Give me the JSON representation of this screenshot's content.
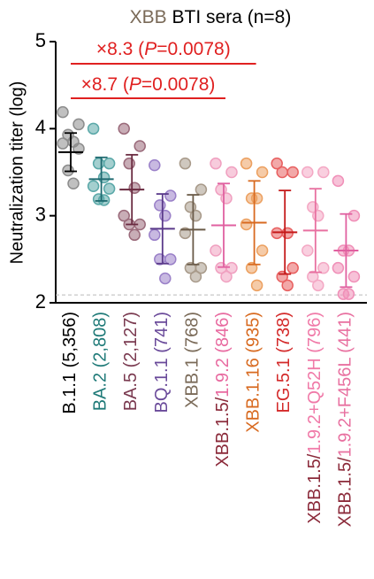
{
  "chart_data": {
    "type": "dot",
    "title": [
      {
        "text": "XBB",
        "color": "#7a6a58"
      },
      {
        "text": " BTI sera (n=8)",
        "color": "#000000"
      }
    ],
    "y_label": "Neutralization titer (log)",
    "ylim": [
      2,
      5
    ],
    "yticks": [
      2,
      3,
      4,
      5
    ],
    "reference_line": 2.09,
    "series": [
      {
        "label": [
          {
            "text": "B.1.1 (5,356)",
            "color": "#000000"
          }
        ],
        "color": "#8c8c8c",
        "bar_color": "#000000",
        "values": [
          4.19,
          4.05,
          3.93,
          3.85,
          3.83,
          3.77,
          3.52,
          3.37
        ],
        "mean": 3.73,
        "sd": 0.22
      },
      {
        "label": [
          {
            "text": "BA.2 (2,808)",
            "color": "#1f7a78"
          }
        ],
        "color": "#5aa8a8",
        "bar_color": "#1f6a70",
        "values": [
          4.0,
          3.6,
          3.6,
          3.44,
          3.34,
          3.31,
          3.19,
          3.18
        ],
        "mean": 3.42,
        "sd": 0.25
      },
      {
        "label": [
          {
            "text": "BA.5 (2,127)",
            "color": "#7a3a50"
          }
        ],
        "color": "#9a6a7a",
        "bar_color": "#6a2a40",
        "values": [
          4.0,
          3.8,
          3.6,
          3.32,
          3.0,
          2.9,
          2.9,
          2.78
        ],
        "mean": 3.3,
        "sd": 0.4
      },
      {
        "label": [
          {
            "text": "BQ.1.1 (741)",
            "color": "#6a4a9a"
          }
        ],
        "color": "#9a80c8",
        "bar_color": "#5a3a8a",
        "values": [
          3.58,
          3.23,
          3.12,
          3.0,
          2.78,
          2.5,
          2.5,
          2.28
        ],
        "mean": 2.85,
        "sd": 0.4
      },
      {
        "label": [
          {
            "text": "XBB.1 (768)",
            "color": "#7a6a58"
          }
        ],
        "color": "#a89a8a",
        "bar_color": "#6a5a48",
        "values": [
          3.6,
          3.3,
          3.1,
          3.0,
          2.8,
          2.4,
          2.4,
          2.3
        ],
        "mean": 2.84,
        "sd": 0.4
      },
      {
        "label": [
          {
            "text": "XBB.1.5/",
            "color": "#8b2a3a"
          },
          {
            "text": "1.9.2 (846)",
            "color": "#e86aa0"
          }
        ],
        "color": "#f0a0c0",
        "bar_color": "#e060a0",
        "values": [
          3.6,
          3.5,
          3.3,
          3.2,
          2.6,
          2.4,
          2.4,
          2.3
        ],
        "mean": 2.89,
        "sd": 0.48
      },
      {
        "label": [
          {
            "text": "XBB.1.16 (935)",
            "color": "#d86a20"
          }
        ],
        "color": "#eca060",
        "bar_color": "#d86a20",
        "values": [
          3.6,
          3.5,
          3.2,
          3.2,
          2.9,
          2.6,
          2.4,
          2.2
        ],
        "mean": 2.92,
        "sd": 0.48
      },
      {
        "label": [
          {
            "text": "EG.5.1 (738)",
            "color": "#d42a2a"
          }
        ],
        "color": "#e86060",
        "bar_color": "#c41a1a",
        "values": [
          3.6,
          3.5,
          3.5,
          2.8,
          2.8,
          2.4,
          2.3,
          2.2
        ],
        "mean": 2.81,
        "sd": 0.48
      },
      {
        "label": [
          {
            "text": "XBB.1.5/",
            "color": "#8b2a3a"
          },
          {
            "text": "1.9.2+Q52H (796)",
            "color": "#f07aa8"
          }
        ],
        "color": "#f4a8c4",
        "bar_color": "#e870a0",
        "values": [
          3.5,
          3.5,
          3.1,
          3.0,
          2.6,
          2.4,
          2.3,
          2.2
        ],
        "mean": 2.83,
        "sd": 0.48
      },
      {
        "label": [
          {
            "text": "XBB.1.5/",
            "color": "#8b2a3a"
          },
          {
            "text": "1.9.2+F456L (441)",
            "color": "#e870a0"
          }
        ],
        "color": "#f090b8",
        "bar_color": "#e060a0",
        "values": [
          3.4,
          3.0,
          2.6,
          2.6,
          2.4,
          2.3,
          2.1,
          2.1
        ],
        "mean": 2.6,
        "sd": 0.42
      }
    ],
    "annotations": [
      {
        "parts": [
          {
            "text": "×8.3 (",
            "italic": false
          },
          {
            "text": "P",
            "italic": true
          },
          {
            "text": "=0.0078)",
            "italic": false
          }
        ],
        "from": 0,
        "to": 6,
        "color": "#e02020"
      },
      {
        "parts": [
          {
            "text": "×8.7 (",
            "italic": false
          },
          {
            "text": "P",
            "italic": true
          },
          {
            "text": "=0.0078)",
            "italic": false
          }
        ],
        "from": 0,
        "to": 5,
        "color": "#e02020"
      }
    ]
  }
}
